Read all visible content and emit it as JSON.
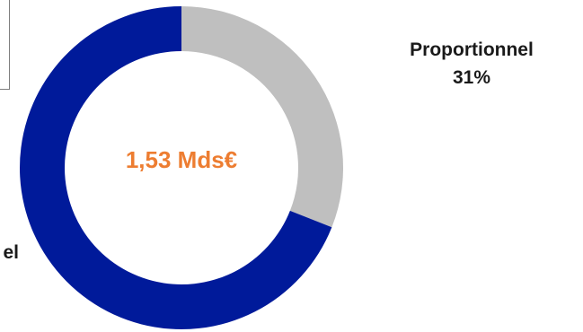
{
  "chart_data": {
    "type": "pie",
    "center_label": "1,53 Mds€",
    "slices": [
      {
        "name": "Proportionnel",
        "value": 31,
        "value_label": "31%",
        "color": "#bfbfbf"
      },
      {
        "name": "el",
        "value": 69,
        "value_label": "",
        "color": "#001a9a"
      }
    ]
  }
}
